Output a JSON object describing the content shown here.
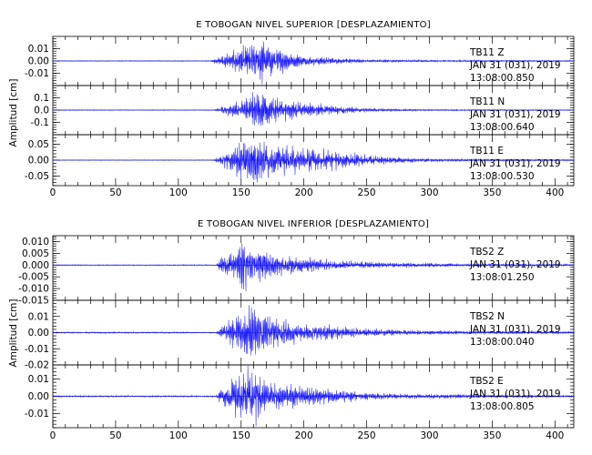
{
  "chart_data": [
    {
      "type": "line",
      "title": "E TOBOGAN NIVEL SUPERIOR [DESPLAZAMIENTO]",
      "ylabel": "Amplitud [cm]",
      "xlim": [
        0,
        415
      ],
      "x_ticks": [
        0,
        50,
        100,
        150,
        200,
        250,
        300,
        350,
        400
      ],
      "grid": false,
      "panels": [
        {
          "station": "TB11",
          "component": "Z",
          "date": "JAN 31 (031), 2019",
          "time": "13:08:00.850",
          "ylim": [
            -0.02,
            0.02
          ],
          "y_ticks": [
            0.01,
            0.0,
            -0.01
          ],
          "y_tick_labels": [
            "0.01",
            "0.00",
            "-0.01"
          ],
          "envelope": [
            [
              0,
              0.0003
            ],
            [
              125,
              0.0003
            ],
            [
              130,
              0.002
            ],
            [
              140,
              0.006
            ],
            [
              155,
              0.012
            ],
            [
              165,
              0.016
            ],
            [
              175,
              0.012
            ],
            [
              190,
              0.006
            ],
            [
              210,
              0.003
            ],
            [
              250,
              0.0012
            ],
            [
              300,
              0.0008
            ],
            [
              415,
              0.0004
            ]
          ]
        },
        {
          "station": "TB11",
          "component": "N",
          "date": "JAN 31 (031), 2019",
          "time": "13:08:00.640",
          "ylim": [
            -0.2,
            0.2
          ],
          "y_ticks": [
            0.1,
            0.0,
            -0.1
          ],
          "y_tick_labels": [
            "0.1",
            "0.0",
            "-0.1"
          ],
          "envelope": [
            [
              0,
              0.003
            ],
            [
              128,
              0.003
            ],
            [
              135,
              0.03
            ],
            [
              150,
              0.07
            ],
            [
              165,
              0.15
            ],
            [
              175,
              0.1
            ],
            [
              195,
              0.06
            ],
            [
              230,
              0.03
            ],
            [
              260,
              0.012
            ],
            [
              300,
              0.006
            ],
            [
              415,
              0.003
            ]
          ]
        },
        {
          "station": "TB11",
          "component": "E",
          "date": "JAN 31 (031), 2019",
          "time": "13:08:00.530",
          "ylim": [
            -0.08,
            0.08
          ],
          "y_ticks": [
            0.05,
            0.0,
            -0.05
          ],
          "y_tick_labels": [
            "0.05",
            "0.00",
            "-0.05"
          ],
          "envelope": [
            [
              0,
              0.001
            ],
            [
              128,
              0.001
            ],
            [
              135,
              0.02
            ],
            [
              150,
              0.05
            ],
            [
              160,
              0.07
            ],
            [
              175,
              0.045
            ],
            [
              200,
              0.035
            ],
            [
              230,
              0.025
            ],
            [
              260,
              0.012
            ],
            [
              300,
              0.005
            ],
            [
              415,
              0.002
            ]
          ]
        }
      ]
    },
    {
      "type": "line",
      "title": "E TOBOGAN NIVEL INFERIOR [DESPLAZAMIENTO]",
      "ylabel": "Amplitud [cm]",
      "xlim": [
        0,
        415
      ],
      "x_ticks": [
        0,
        50,
        100,
        150,
        200,
        250,
        300,
        350,
        400
      ],
      "grid": false,
      "panels": [
        {
          "station": "TBS2",
          "component": "Z",
          "date": "JAN 31 (031), 2019",
          "time": "13:08:01.250",
          "ylim": [
            -0.015,
            0.0125
          ],
          "y_ticks": [
            0.01,
            0.005,
            0.0,
            -0.005,
            -0.01,
            -0.015
          ],
          "y_tick_labels": [
            "0.010",
            "0.005",
            "0.000",
            "-0.005",
            "-0.010",
            "-0.015"
          ],
          "envelope": [
            [
              0,
              0.0002
            ],
            [
              130,
              0.0002
            ],
            [
              133,
              0.003
            ],
            [
              145,
              0.005
            ],
            [
              150,
              0.012
            ],
            [
              160,
              0.008
            ],
            [
              185,
              0.004
            ],
            [
              220,
              0.002
            ],
            [
              270,
              0.001
            ],
            [
              330,
              0.0006
            ],
            [
              415,
              0.0004
            ]
          ]
        },
        {
          "station": "TBS2",
          "component": "N",
          "date": "JAN 31 (031), 2019",
          "time": "13:08:00.040",
          "ylim": [
            -0.02,
            0.02
          ],
          "y_ticks": [
            0.01,
            0.0,
            -0.01,
            -0.02
          ],
          "y_tick_labels": [
            "0.01",
            "0.00",
            "-0.01",
            "-0.02"
          ],
          "envelope": [
            [
              0,
              0.0004
            ],
            [
              130,
              0.0004
            ],
            [
              135,
              0.004
            ],
            [
              150,
              0.012
            ],
            [
              160,
              0.016
            ],
            [
              175,
              0.009
            ],
            [
              200,
              0.005
            ],
            [
              240,
              0.003
            ],
            [
              280,
              0.0015
            ],
            [
              330,
              0.001
            ],
            [
              415,
              0.0006
            ]
          ]
        },
        {
          "station": "TBS2",
          "component": "E",
          "date": "JAN 31 (031), 2019",
          "time": "13:08:00.805",
          "ylim": [
            -0.018,
            0.018
          ],
          "y_ticks": [
            0.01,
            0.0,
            -0.01
          ],
          "y_tick_labels": [
            "0.01",
            "0.00",
            "-0.01"
          ],
          "envelope": [
            [
              0,
              0.0004
            ],
            [
              130,
              0.0004
            ],
            [
              135,
              0.005
            ],
            [
              148,
              0.012
            ],
            [
              160,
              0.015
            ],
            [
              175,
              0.008
            ],
            [
              200,
              0.005
            ],
            [
              230,
              0.003
            ],
            [
              270,
              0.0015
            ],
            [
              330,
              0.001
            ],
            [
              415,
              0.0006
            ]
          ]
        }
      ]
    }
  ]
}
